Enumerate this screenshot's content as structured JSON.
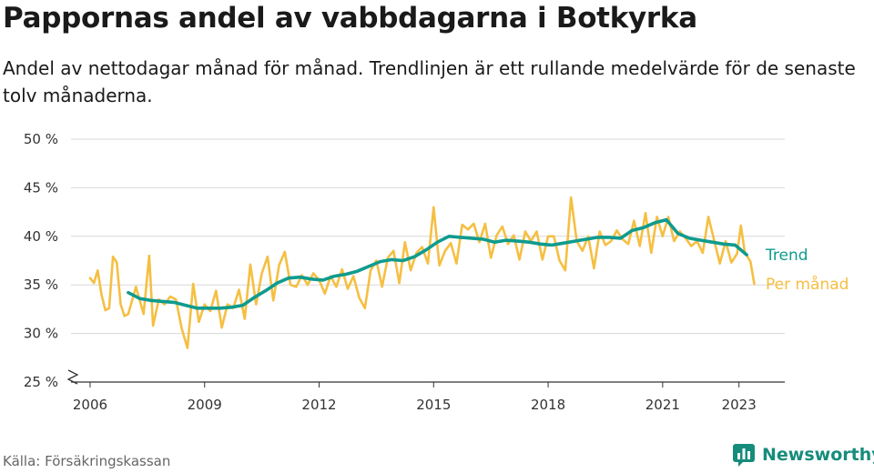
{
  "title": "Pappornas andel av vabbdagarna i Botkyrka",
  "subtitle": "Andel av nettodagar månad för månad. Trendlinjen är ett rullande medelvärde för de senaste tolv månaderna.",
  "source": "Källa: Försäkringskassan",
  "brand": "Newsworthy",
  "colors": {
    "trend": "#0f9b8e",
    "monthly": "#f5bf42",
    "grid": "#d8d8d8",
    "brand": "#168c7c"
  },
  "chart_data": {
    "type": "line",
    "title": "Pappornas andel av vabbdagarna i Botkyrka",
    "xlabel": "",
    "ylabel": "",
    "xlim": [
      2005.5,
      2024.2
    ],
    "ylim": [
      25,
      50
    ],
    "y_broken_at_bottom": true,
    "y_ticks": [
      25,
      30,
      35,
      40,
      45,
      50
    ],
    "y_tick_labels": [
      "25 %",
      "30 %",
      "35 %",
      "40 %",
      "45 %",
      "50 %"
    ],
    "x_ticks": [
      2006,
      2009,
      2012,
      2015,
      2018,
      2021,
      2023
    ],
    "x_tick_labels": [
      "2006",
      "2009",
      "2012",
      "2015",
      "2018",
      "2021",
      "2023"
    ],
    "grid": "horizontal",
    "legend": "line-end labels, right",
    "series": [
      {
        "name": "Trend",
        "x": [
          2007.0,
          2007.3,
          2007.6,
          2007.9,
          2008.2,
          2008.5,
          2008.8,
          2009.1,
          2009.4,
          2009.7,
          2010.0,
          2010.3,
          2010.6,
          2010.9,
          2011.2,
          2011.5,
          2011.8,
          2012.1,
          2012.4,
          2012.7,
          2013.0,
          2013.3,
          2013.6,
          2013.9,
          2014.2,
          2014.5,
          2014.8,
          2015.1,
          2015.4,
          2015.7,
          2016.0,
          2016.3,
          2016.6,
          2016.9,
          2017.2,
          2017.5,
          2017.8,
          2018.1,
          2018.4,
          2018.7,
          2019.0,
          2019.3,
          2019.6,
          2019.9,
          2020.2,
          2020.5,
          2020.8,
          2021.1,
          2021.4,
          2021.7,
          2022.0,
          2022.3,
          2022.6,
          2022.9,
          2023.2
        ],
        "values": [
          34.2,
          33.6,
          33.4,
          33.3,
          33.2,
          32.9,
          32.6,
          32.6,
          32.6,
          32.7,
          32.9,
          33.7,
          34.4,
          35.2,
          35.7,
          35.8,
          35.6,
          35.5,
          35.9,
          36.1,
          36.4,
          36.9,
          37.4,
          37.6,
          37.5,
          37.9,
          38.6,
          39.4,
          40.0,
          39.9,
          39.8,
          39.7,
          39.4,
          39.6,
          39.5,
          39.4,
          39.2,
          39.1,
          39.3,
          39.5,
          39.7,
          39.9,
          39.9,
          39.8,
          40.6,
          40.9,
          41.4,
          41.7,
          40.3,
          39.8,
          39.6,
          39.4,
          39.2,
          39.1,
          38.1
        ]
      },
      {
        "name": "Per månad",
        "x": [
          2006.0,
          2006.1,
          2006.2,
          2006.3,
          2006.4,
          2006.5,
          2006.6,
          2006.7,
          2006.8,
          2006.9,
          2007.0,
          2007.2,
          2007.4,
          2007.55,
          2007.65,
          2007.8,
          2007.95,
          2008.1,
          2008.25,
          2008.4,
          2008.55,
          2008.7,
          2008.85,
          2009.0,
          2009.15,
          2009.3,
          2009.45,
          2009.6,
          2009.75,
          2009.9,
          2010.05,
          2010.2,
          2010.35,
          2010.5,
          2010.65,
          2010.8,
          2010.95,
          2011.1,
          2011.25,
          2011.4,
          2011.55,
          2011.7,
          2011.85,
          2012.0,
          2012.15,
          2012.3,
          2012.45,
          2012.6,
          2012.75,
          2012.9,
          2013.05,
          2013.2,
          2013.35,
          2013.5,
          2013.65,
          2013.8,
          2013.95,
          2014.1,
          2014.25,
          2014.4,
          2014.55,
          2014.7,
          2014.85,
          2015.0,
          2015.15,
          2015.3,
          2015.45,
          2015.6,
          2015.75,
          2015.9,
          2016.05,
          2016.2,
          2016.35,
          2016.5,
          2016.65,
          2016.8,
          2016.95,
          2017.1,
          2017.25,
          2017.4,
          2017.55,
          2017.7,
          2017.85,
          2018.0,
          2018.15,
          2018.3,
          2018.45,
          2018.6,
          2018.75,
          2018.9,
          2019.05,
          2019.2,
          2019.35,
          2019.5,
          2019.65,
          2019.8,
          2019.95,
          2020.1,
          2020.25,
          2020.4,
          2020.55,
          2020.7,
          2020.85,
          2021.0,
          2021.15,
          2021.3,
          2021.45,
          2021.6,
          2021.75,
          2021.9,
          2022.05,
          2022.2,
          2022.35,
          2022.5,
          2022.65,
          2022.8,
          2022.95,
          2023.05,
          2023.15,
          2023.3,
          2023.4
        ],
        "values": [
          35.7,
          35.2,
          36.5,
          34.0,
          32.4,
          32.6,
          37.9,
          37.3,
          33.0,
          31.8,
          32.0,
          34.8,
          32.0,
          38.0,
          30.8,
          33.5,
          33.0,
          33.8,
          33.5,
          30.5,
          28.5,
          35.1,
          31.2,
          33.0,
          32.3,
          34.4,
          30.6,
          33.0,
          32.6,
          34.5,
          31.5,
          37.1,
          33.0,
          36.2,
          37.9,
          33.4,
          37.0,
          38.4,
          35.0,
          34.8,
          36.0,
          35.0,
          36.2,
          35.5,
          34.1,
          35.9,
          34.8,
          36.6,
          34.6,
          35.9,
          33.7,
          32.6,
          36.5,
          37.5,
          34.8,
          37.8,
          38.5,
          35.2,
          39.4,
          36.5,
          38.3,
          38.9,
          37.2,
          43.0,
          37.0,
          38.5,
          39.3,
          37.2,
          41.2,
          40.7,
          41.3,
          39.4,
          41.3,
          37.8,
          40.1,
          41.0,
          39.2,
          40.1,
          37.6,
          40.5,
          39.5,
          40.5,
          37.6,
          40.0,
          40.0,
          37.5,
          36.5,
          44.0,
          39.5,
          38.5,
          40.0,
          36.7,
          40.5,
          39.1,
          39.5,
          40.6,
          39.7,
          39.2,
          41.6,
          39.0,
          42.4,
          38.3,
          42.0,
          40.0,
          42.0,
          39.5,
          40.5,
          39.8,
          39.0,
          39.5,
          38.3,
          42.0,
          39.6,
          37.2,
          39.5,
          37.3,
          38.2,
          41.1,
          38.4,
          37.4,
          35.1
        ]
      }
    ],
    "legend_labels": [
      "Trend",
      "Per månad"
    ]
  }
}
